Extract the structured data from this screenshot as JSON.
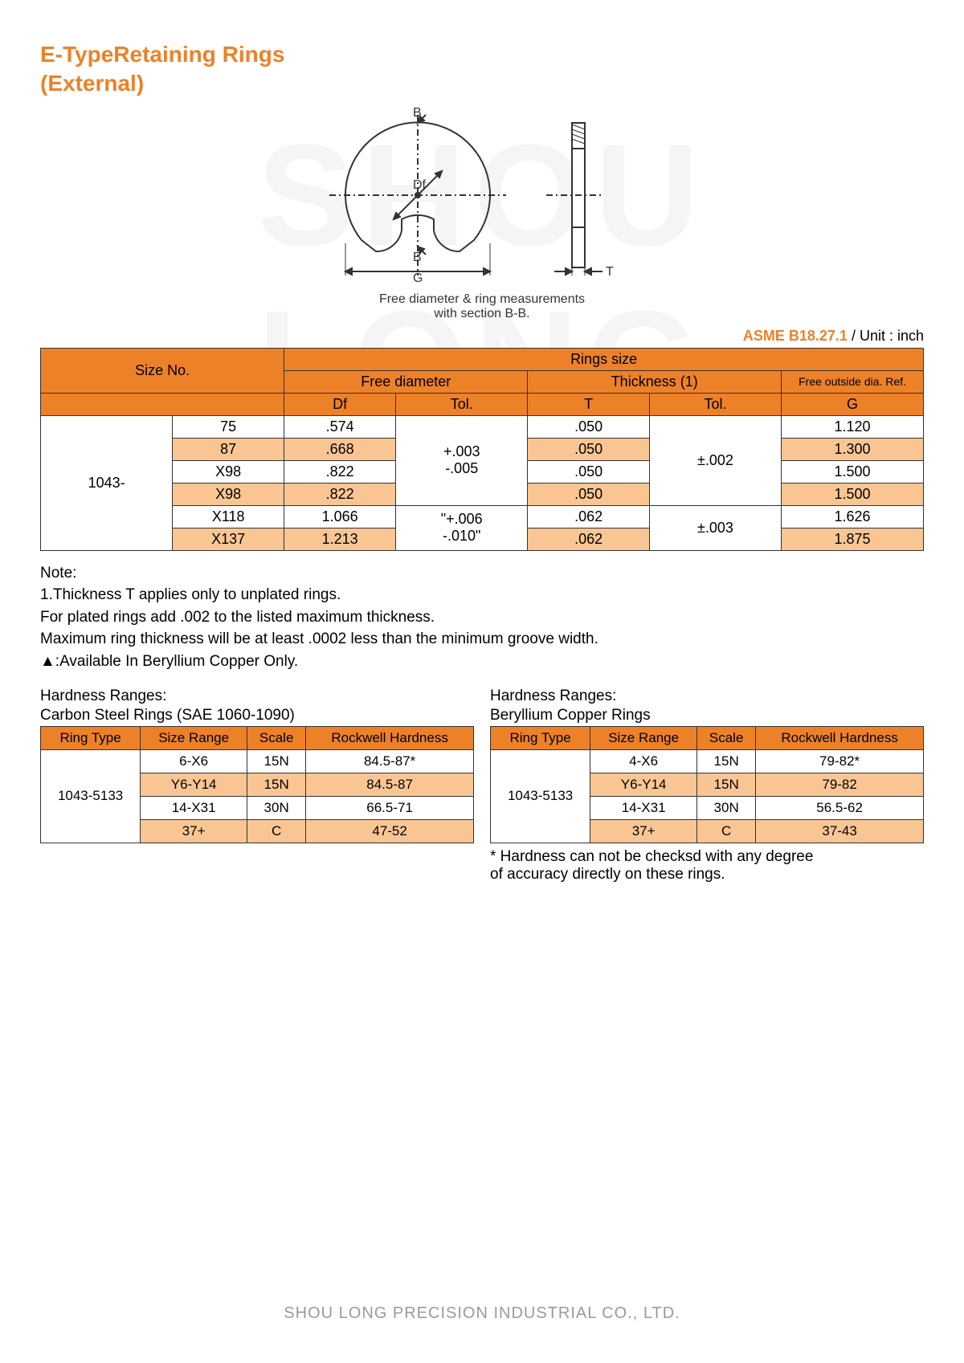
{
  "colors": {
    "accent": "#ed8128",
    "alt_row": "#f9c693",
    "border": "#333333",
    "watermark": "#f5f5f5",
    "footer": "#9a9a9a",
    "text": "#333333"
  },
  "title_line1": "E-TypeRetaining Rings",
  "title_line2": "(External)",
  "watermark_text": "SHOU LONG",
  "diagram": {
    "labels": {
      "B": "B",
      "Df": "Df",
      "G": "G",
      "T": "T"
    },
    "caption_line1": "Free diameter & ring measurements",
    "caption_line2": "with section B-B."
  },
  "spec": {
    "code": "ASME B18.27.1",
    "unit": "/ Unit : inch"
  },
  "main_table": {
    "headers": {
      "size_no": "Size No.",
      "rings_size": "Rings size",
      "free_diameter": "Free diameter",
      "thickness": "Thickness (1)",
      "free_outside": "Free outside dia. Ref.",
      "Df": "Df",
      "Tol": "Tol.",
      "T": "T",
      "G": "G"
    },
    "series": "1043-",
    "rows": [
      {
        "size": "75",
        "df": ".574",
        "t": ".050",
        "g": "1.120",
        "alt": false
      },
      {
        "size": "87",
        "df": ".668",
        "t": ".050",
        "g": "1.300",
        "alt": true
      },
      {
        "size": "X98",
        "df": ".822",
        "t": ".050",
        "g": "1.500",
        "alt": false
      },
      {
        "size": "X98",
        "df": ".822",
        "t": ".050",
        "g": "1.500",
        "alt": true
      },
      {
        "size": "X118",
        "df": "1.066",
        "t": ".062",
        "g": "1.626",
        "alt": false
      },
      {
        "size": "X137",
        "df": "1.213",
        "t": ".062",
        "g": "1.875",
        "alt": true
      }
    ],
    "tol_groups": {
      "df1": "+.003\n-.005",
      "df2": "\"+.006\n-.010\"",
      "t1": "±.002",
      "t2": "±.003"
    }
  },
  "notes": {
    "heading": "Note:",
    "l1": "1.Thickness T applies only to unplated rings.",
    "l2": "For plated rings add .002 to the listed maximum thickness.",
    "l3": "Maximum ring thickness will be at least .0002 less than the minimum groove width.",
    "l4": "▲:Available In Beryllium Copper Only."
  },
  "hardness": {
    "label": "Hardness Ranges:",
    "carbon_title": "Carbon Steel Rings (SAE 1060-1090)",
    "beryllium_title": "Beryllium Copper Rings",
    "headers": {
      "ring_type": "Ring Type",
      "size_range": "Size Range",
      "scale": "Scale",
      "rockwell": "Rockwell Hardness"
    },
    "ring_type_value": "1043-5133",
    "carbon_rows": [
      {
        "range": "6-X6",
        "scale": "15N",
        "hard": "84.5-87*",
        "alt": false
      },
      {
        "range": "Y6-Y14",
        "scale": "15N",
        "hard": "84.5-87",
        "alt": true
      },
      {
        "range": "14-X31",
        "scale": "30N",
        "hard": "66.5-71",
        "alt": false
      },
      {
        "range": "37+",
        "scale": "C",
        "hard": "47-52",
        "alt": true
      }
    ],
    "beryllium_rows": [
      {
        "range": "4-X6",
        "scale": "15N",
        "hard": "79-82*",
        "alt": false
      },
      {
        "range": "Y6-Y14",
        "scale": "15N",
        "hard": "79-82",
        "alt": true
      },
      {
        "range": "14-X31",
        "scale": "30N",
        "hard": "56.5-62",
        "alt": false
      },
      {
        "range": "37+",
        "scale": "C",
        "hard": "37-43",
        "alt": true
      }
    ],
    "footnote_l1": "* Hardness can not be checksd with any degree",
    "footnote_l2": "of accuracy directly on these rings."
  },
  "footer": "SHOU LONG PRECISION INDUSTRIAL CO., LTD."
}
